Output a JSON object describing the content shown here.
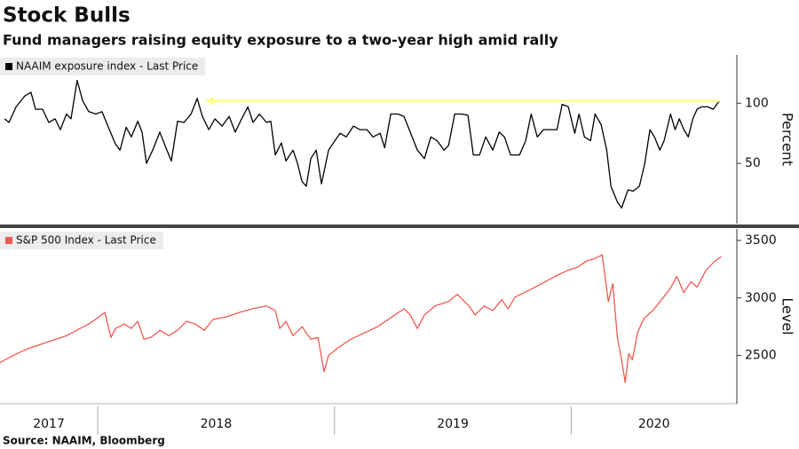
{
  "title": "Stock Bulls",
  "subtitle": "Fund managers raising equity exposure to a two-year high amid rally",
  "source": "Source: NAAIM, Bloomberg",
  "chart_data": [
    {
      "type": "line",
      "y_label": "Percent",
      "xlim": [
        2017.587,
        2020.7
      ],
      "ylim": [
        0,
        140
      ],
      "yticks": [
        50,
        100
      ],
      "grid": false,
      "annotation_arrow": {
        "y": 102,
        "x_from": 2018.457,
        "x_to": 2020.626,
        "color": "#ffff88"
      },
      "x": [
        2017.606,
        2017.625,
        2017.655,
        2017.692,
        2017.718,
        2017.737,
        2017.767,
        2017.793,
        2017.82,
        2017.842,
        2017.868,
        2017.887,
        2017.913,
        2017.936,
        2017.962,
        2017.992,
        2018.018,
        2018.045,
        2018.075,
        2018.094,
        2018.12,
        2018.142,
        2018.169,
        2018.187,
        2018.206,
        2018.232,
        2018.262,
        2018.292,
        2018.311,
        2018.337,
        2018.364,
        2018.394,
        2018.42,
        2018.442,
        2018.469,
        2018.495,
        2018.525,
        2018.555,
        2018.581,
        2018.608,
        2018.634,
        2018.656,
        2018.683,
        2018.713,
        2018.731,
        2018.75,
        2018.776,
        2018.795,
        2018.825,
        2018.844,
        2018.863,
        2018.881,
        2018.9,
        2018.923,
        2018.945,
        2018.975,
        2019.002,
        2019.024,
        2019.05,
        2019.08,
        2019.107,
        2019.137,
        2019.163,
        2019.193,
        2019.212,
        2019.238,
        2019.268,
        2019.294,
        2019.32,
        2019.35,
        2019.38,
        2019.407,
        2019.433,
        2019.463,
        2019.482,
        2019.508,
        2019.538,
        2019.564,
        2019.587,
        2019.613,
        2019.639,
        2019.669,
        2019.696,
        2019.718,
        2019.744,
        2019.782,
        2019.808,
        2019.831,
        2019.857,
        2019.883,
        2019.913,
        2019.94,
        2019.962,
        2019.988,
        2020.015,
        2020.033,
        2020.056,
        2020.082,
        2020.101,
        2020.127,
        2020.15,
        2020.168,
        2020.195,
        2020.213,
        2020.24,
        2020.262,
        2020.288,
        2020.311,
        2020.333,
        2020.352,
        2020.375,
        2020.393,
        2020.42,
        2020.439,
        2020.457,
        2020.476,
        2020.495,
        2020.514,
        2020.532,
        2020.551,
        2020.577,
        2020.6,
        2020.626
      ],
      "series": [
        {
          "name": "NAAIM exposure index - Last Price",
          "color": "#000000",
          "values": [
            87,
            84,
            97,
            106,
            109,
            95,
            95,
            84,
            87,
            78,
            91,
            87,
            119,
            102,
            93,
            91,
            93,
            80,
            66,
            61,
            80,
            72,
            85,
            76,
            50,
            61,
            76,
            61,
            52,
            85,
            84,
            91,
            104,
            89,
            78,
            87,
            81,
            89,
            76,
            87,
            97,
            84,
            91,
            84,
            85,
            57,
            67,
            52,
            61,
            50,
            35,
            31,
            54,
            61,
            33,
            61,
            69,
            75,
            72,
            81,
            78,
            78,
            72,
            75,
            63,
            91,
            91,
            89,
            76,
            61,
            54,
            72,
            69,
            61,
            65,
            91,
            91,
            90,
            57,
            57,
            72,
            61,
            76,
            72,
            57,
            57,
            69,
            91,
            72,
            78,
            78,
            78,
            99,
            97,
            75,
            91,
            72,
            69,
            91,
            82,
            61,
            31,
            18,
            13,
            28,
            27,
            31,
            50,
            78,
            72,
            61,
            69,
            91,
            78,
            87,
            78,
            72,
            87,
            95,
            97,
            97,
            95,
            102
          ]
        }
      ]
    },
    {
      "type": "line",
      "y_label": "Level",
      "xlim": [
        2017.587,
        2020.7
      ],
      "ylim": [
        2080,
        3600
      ],
      "yticks": [
        2500,
        3000,
        3500
      ],
      "xticks": [
        2017,
        2018,
        2019,
        2020
      ],
      "grid": false,
      "x": [
        2017.587,
        2017.643,
        2017.7,
        2017.756,
        2017.812,
        2017.868,
        2017.925,
        2017.962,
        2018.0,
        2018.03,
        2018.056,
        2018.075,
        2018.112,
        2018.142,
        2018.169,
        2018.195,
        2018.225,
        2018.262,
        2018.3,
        2018.337,
        2018.375,
        2018.412,
        2018.45,
        2018.487,
        2018.544,
        2018.6,
        2018.656,
        2018.713,
        2018.75,
        2018.769,
        2018.795,
        2018.825,
        2018.863,
        2018.9,
        2018.93,
        2018.956,
        2018.975,
        2019.013,
        2019.069,
        2019.125,
        2019.182,
        2019.238,
        2019.294,
        2019.32,
        2019.35,
        2019.38,
        2019.425,
        2019.482,
        2019.519,
        2019.568,
        2019.594,
        2019.632,
        2019.669,
        2019.707,
        2019.733,
        2019.763,
        2019.819,
        2019.876,
        2019.932,
        2019.988,
        2020.026,
        2020.063,
        2020.101,
        2020.131,
        2020.157,
        2020.176,
        2020.195,
        2020.213,
        2020.228,
        2020.243,
        2020.258,
        2020.281,
        2020.307,
        2020.345,
        2020.382,
        2020.42,
        2020.446,
        2020.476,
        2020.506,
        2020.532,
        2020.57,
        2020.607,
        2020.634
      ],
      "series": [
        {
          "name": "S&P 500 Index - Last Price",
          "color": "#ee5a52",
          "values": [
            2438,
            2500,
            2555,
            2594,
            2633,
            2672,
            2734,
            2773,
            2828,
            2875,
            2656,
            2734,
            2773,
            2734,
            2797,
            2641,
            2656,
            2719,
            2672,
            2719,
            2797,
            2773,
            2719,
            2813,
            2836,
            2875,
            2906,
            2930,
            2891,
            2734,
            2797,
            2672,
            2750,
            2641,
            2656,
            2359,
            2500,
            2563,
            2641,
            2695,
            2750,
            2828,
            2906,
            2852,
            2734,
            2852,
            2930,
            2969,
            3031,
            2930,
            2852,
            2930,
            2891,
            2984,
            2906,
            3008,
            3063,
            3125,
            3188,
            3242,
            3266,
            3320,
            3344,
            3375,
            2969,
            3125,
            2656,
            2461,
            2266,
            2516,
            2461,
            2703,
            2820,
            2891,
            2984,
            3086,
            3188,
            3047,
            3141,
            3094,
            3242,
            3320,
            3359
          ]
        }
      ]
    }
  ]
}
